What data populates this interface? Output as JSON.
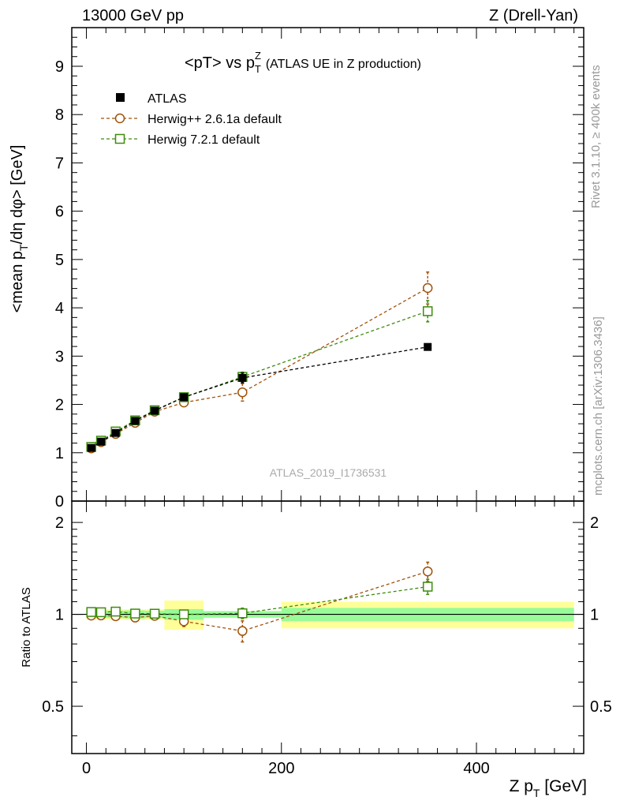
{
  "header": {
    "left": "13000 GeV pp",
    "right": "Z (Drell-Yan)"
  },
  "side": {
    "rivet": "Rivet 3.1.10, ≥ 400k events",
    "mcplots": "mcplots.cern.ch [arXiv:1306.3436]"
  },
  "watermark": "ATLAS_2019_I1736531",
  "colors": {
    "data": "#000000",
    "herwigpp": "#a0520a",
    "herwig7": "#3d8c0c",
    "band_inner": "#98fb98",
    "band_outer": "#ffff99"
  },
  "chart_data": [
    {
      "type": "scatter",
      "title": "<pT> vs pTZ (ATLAS UE in Z production)",
      "title_parts": {
        "main": "<pT> vs p",
        "sup": "Z",
        "sub": "T",
        "rest": "(ATLAS UE in Z production)"
      },
      "xlabel": "Z pT [GeV]",
      "ylabel": "<mean pT/dη dφ> [GeV]",
      "ylabel_parts": {
        "a": "<mean p",
        "b": "T",
        "c": "/dη dφ> [GeV]"
      },
      "xlim": [
        -15,
        510
      ],
      "ylim": [
        0,
        9.8
      ],
      "xticks": [
        0,
        200,
        400
      ],
      "yticks": [
        0,
        1,
        2,
        3,
        4,
        5,
        6,
        7,
        8,
        9
      ],
      "yticklabels": [
        "0",
        "1",
        "2",
        "3",
        "4",
        "5",
        "6",
        "7",
        "8",
        "9"
      ],
      "legend": [
        "ATLAS",
        "Herwig++ 2.6.1a default",
        "Herwig 7.2.1 default"
      ],
      "series": [
        {
          "name": "ATLAS",
          "x": [
            5,
            15,
            30,
            50,
            70,
            100,
            160,
            350
          ],
          "y": [
            1.1,
            1.23,
            1.41,
            1.66,
            1.87,
            2.15,
            2.55,
            3.19
          ],
          "err": [
            0.03,
            0.03,
            0.04,
            0.05,
            0.05,
            0.08,
            0.1,
            0.0
          ]
        },
        {
          "name": "Herwig++ 2.6.1a default",
          "x": [
            5,
            15,
            30,
            50,
            70,
            100,
            160,
            350
          ],
          "y": [
            1.09,
            1.22,
            1.39,
            1.62,
            1.85,
            2.04,
            2.25,
            4.41
          ],
          "err": [
            0.02,
            0.02,
            0.03,
            0.04,
            0.04,
            0.08,
            0.18,
            0.33
          ]
        },
        {
          "name": "Herwig 7.2.1 default",
          "x": [
            5,
            15,
            30,
            50,
            70,
            100,
            160,
            350
          ],
          "y": [
            1.12,
            1.25,
            1.44,
            1.67,
            1.88,
            2.15,
            2.57,
            3.93
          ],
          "err": [
            0.02,
            0.02,
            0.03,
            0.04,
            0.04,
            0.06,
            0.1,
            0.22
          ]
        }
      ]
    },
    {
      "type": "scatter",
      "title": "",
      "xlabel": "Z pT [GeV]",
      "ylabel": "Ratio to ATLAS",
      "xlim": [
        -15,
        510
      ],
      "ylim": [
        0.35,
        2.35
      ],
      "xticks": [
        0,
        200,
        400
      ],
      "yticks": [
        0.5,
        1,
        2
      ],
      "yticklabels": [
        "0.5",
        "1",
        "2"
      ],
      "bands": [
        {
          "x0": 0,
          "x1": 10,
          "inner": [
            0.973,
            1.027
          ],
          "outer": [
            0.96,
            1.04
          ]
        },
        {
          "x0": 10,
          "x1": 20,
          "inner": [
            0.976,
            1.024
          ],
          "outer": [
            0.96,
            1.04
          ]
        },
        {
          "x0": 20,
          "x1": 40,
          "inner": [
            0.972,
            1.028
          ],
          "outer": [
            0.96,
            1.04
          ]
        },
        {
          "x0": 40,
          "x1": 60,
          "inner": [
            0.97,
            1.03
          ],
          "outer": [
            0.96,
            1.04
          ]
        },
        {
          "x0": 60,
          "x1": 80,
          "inner": [
            0.973,
            1.027
          ],
          "outer": [
            0.96,
            1.04
          ]
        },
        {
          "x0": 80,
          "x1": 120,
          "inner": [
            0.96,
            1.04
          ],
          "outer": [
            0.89,
            1.11
          ]
        },
        {
          "x0": 120,
          "x1": 200,
          "inner": [
            0.975,
            1.025
          ],
          "outer": [
            0.975,
            1.025
          ]
        },
        {
          "x0": 200,
          "x1": 500,
          "inner": [
            0.95,
            1.05
          ],
          "outer": [
            0.9,
            1.1
          ]
        }
      ],
      "series": [
        {
          "name": "Herwig++ 2.6.1a default",
          "x": [
            5,
            15,
            30,
            50,
            70,
            100,
            160,
            350
          ],
          "y": [
            0.991,
            0.992,
            0.986,
            0.976,
            0.989,
            0.949,
            0.882,
            1.382
          ],
          "err": [
            0.018,
            0.016,
            0.02,
            0.024,
            0.02,
            0.037,
            0.07,
            0.1
          ]
        },
        {
          "name": "Herwig 7.2.1 default",
          "x": [
            5,
            15,
            30,
            50,
            70,
            100,
            160,
            350
          ],
          "y": [
            1.018,
            1.016,
            1.021,
            1.006,
            1.005,
            1.0,
            1.008,
            1.232
          ],
          "err": [
            0.018,
            0.016,
            0.02,
            0.024,
            0.02,
            0.028,
            0.04,
            0.07
          ]
        }
      ]
    }
  ]
}
